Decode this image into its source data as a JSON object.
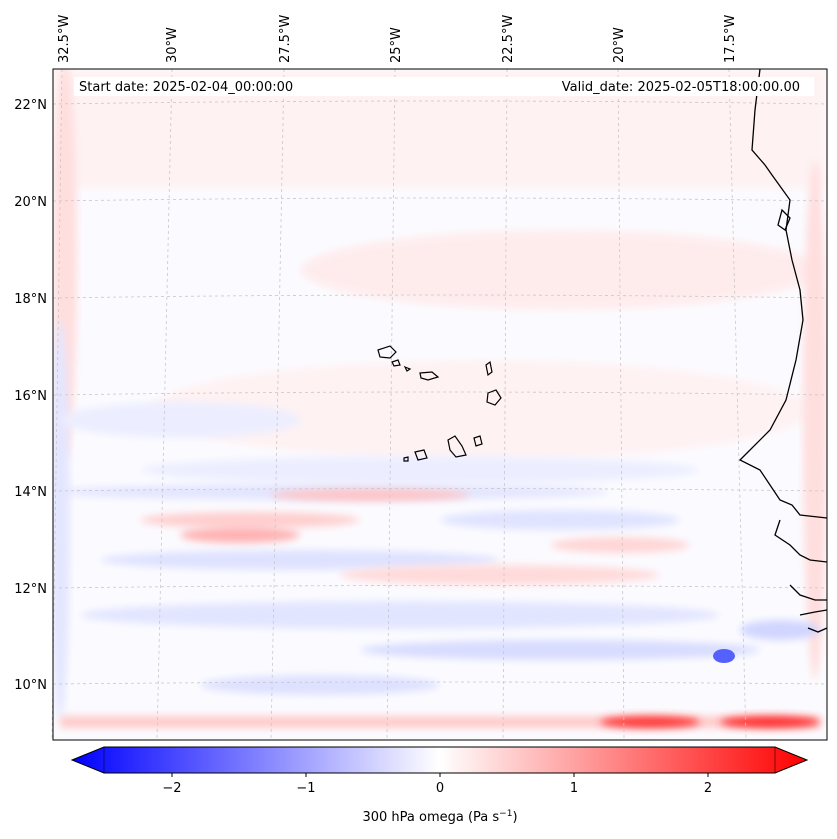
{
  "header": {
    "start_date": "Start date: 2025-02-04_00:00:00",
    "valid_date": "Valid_date: 2025-02-05T18:00:00.00"
  },
  "map": {
    "lon_labels": [
      "32.5°W",
      "30°W",
      "27.5°W",
      "25°W",
      "22.5°W",
      "20°W",
      "17.5°W"
    ],
    "lat_labels": [
      "22°N",
      "20°N",
      "18°N",
      "16°N",
      "14°N",
      "12°N",
      "10°N"
    ],
    "features": [
      "Cabo Verde islands",
      "West African coastline"
    ]
  },
  "colorbar": {
    "label": "300 hPa omega (Pa s",
    "label_sup": "−1",
    "label_end": ")",
    "tick_labels": [
      "−2",
      "−1",
      "0",
      "1",
      "2"
    ],
    "range": [
      -2.6,
      2.6
    ],
    "low_color": "#0000ff",
    "mid_color": "#ffffff",
    "high_color": "#ff0000"
  },
  "colors": {
    "frame": "#000000",
    "grid": "#c8c8c8",
    "coast": "#000000"
  }
}
